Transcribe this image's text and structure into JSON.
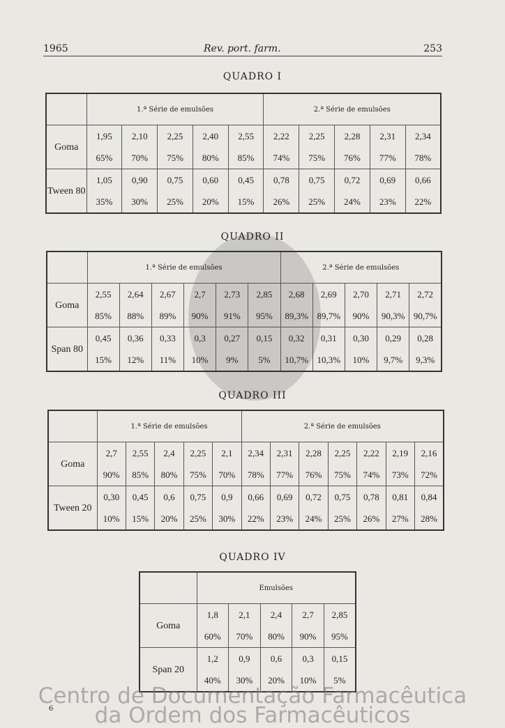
{
  "header": {
    "year": "1965",
    "journal": "Rev. port. farm.",
    "page": "253"
  },
  "footer": {
    "signature": "6"
  },
  "watermark": {
    "line1": "Centro de Documentação Farmacêutica",
    "line2": "da Ordem dos Farmacêuticos"
  },
  "tables": [
    {
      "title": "QUADRO I",
      "series": [
        "1.ª Série de emulsões",
        "2.ª Série de emulsões"
      ],
      "split": 5,
      "rows": [
        {
          "label": "Goma",
          "values": [
            "1,95",
            "2,10",
            "2,25",
            "2,40",
            "2,55",
            "2,22",
            "2,25",
            "2,28",
            "2,31",
            "2,34"
          ],
          "percents": [
            "65%",
            "70%",
            "75%",
            "80%",
            "85%",
            "74%",
            "75%",
            "76%",
            "77%",
            "78%"
          ]
        },
        {
          "label": "Tween 80",
          "values": [
            "1,05",
            "0,90",
            "0,75",
            "0,60",
            "0,45",
            "0,78",
            "0,75",
            "0,72",
            "0,69",
            "0,66"
          ],
          "percents": [
            "35%",
            "30%",
            "25%",
            "20%",
            "15%",
            "26%",
            "25%",
            "24%",
            "23%",
            "22%"
          ]
        }
      ]
    },
    {
      "title": "QUADRO II",
      "series": [
        "1.ª Série de emulsões",
        "2.ª Série de emulsões"
      ],
      "split": 6,
      "rows": [
        {
          "label": "Goma",
          "values": [
            "2,55",
            "2,64",
            "2,67",
            "2,7",
            "2,73",
            "2,85",
            "2,68",
            "2,69",
            "2,70",
            "2,71",
            "2,72"
          ],
          "percents": [
            "85%",
            "88%",
            "89%",
            "90%",
            "91%",
            "95%",
            "89,3%",
            "89,7%",
            "90%",
            "90,3%",
            "90,7%"
          ]
        },
        {
          "label": "Span 80",
          "values": [
            "0,45",
            "0,36",
            "0,33",
            "0,3",
            "0,27",
            "0,15",
            "0,32",
            "0,31",
            "0,30",
            "0,29",
            "0,28"
          ],
          "percents": [
            "15%",
            "12%",
            "11%",
            "10%",
            "9%",
            "5%",
            "10,7%",
            "10,3%",
            "10%",
            "9,7%",
            "9,3%"
          ]
        }
      ]
    },
    {
      "title": "QUADRO III",
      "series": [
        "1.ª Série de emulsões",
        "2.ª Série de emulsões"
      ],
      "split": 5,
      "rows": [
        {
          "label": "Goma",
          "values": [
            "2,7",
            "2,55",
            "2,4",
            "2,25",
            "2,1",
            "2,34",
            "2,31",
            "2,28",
            "2,25",
            "2,22",
            "2,19",
            "2,16"
          ],
          "percents": [
            "90%",
            "85%",
            "80%",
            "75%",
            "70%",
            "78%",
            "77%",
            "76%",
            "75%",
            "74%",
            "73%",
            "72%"
          ]
        },
        {
          "label": "Tween 20",
          "values": [
            "0,30",
            "0,45",
            "0,6",
            "0,75",
            "0,9",
            "0,66",
            "0,69",
            "0,72",
            "0,75",
            "0,78",
            "0,81",
            "0,84"
          ],
          "percents": [
            "10%",
            "15%",
            "20%",
            "25%",
            "30%",
            "22%",
            "23%",
            "24%",
            "25%",
            "26%",
            "27%",
            "28%"
          ]
        }
      ]
    },
    {
      "title": "QUADRO IV",
      "series": [
        "Emulsões"
      ],
      "split": 5,
      "rows": [
        {
          "label": "Goma",
          "values": [
            "1,8",
            "2,1",
            "2,4",
            "2,7",
            "2,85"
          ],
          "percents": [
            "60%",
            "70%",
            "80%",
            "90%",
            "95%"
          ]
        },
        {
          "label": "Span 20",
          "values": [
            "1,2",
            "0,9",
            "0,6",
            "0,3",
            "0,15"
          ],
          "percents": [
            "40%",
            "30%",
            "20%",
            "10%",
            "5%"
          ]
        }
      ]
    }
  ]
}
